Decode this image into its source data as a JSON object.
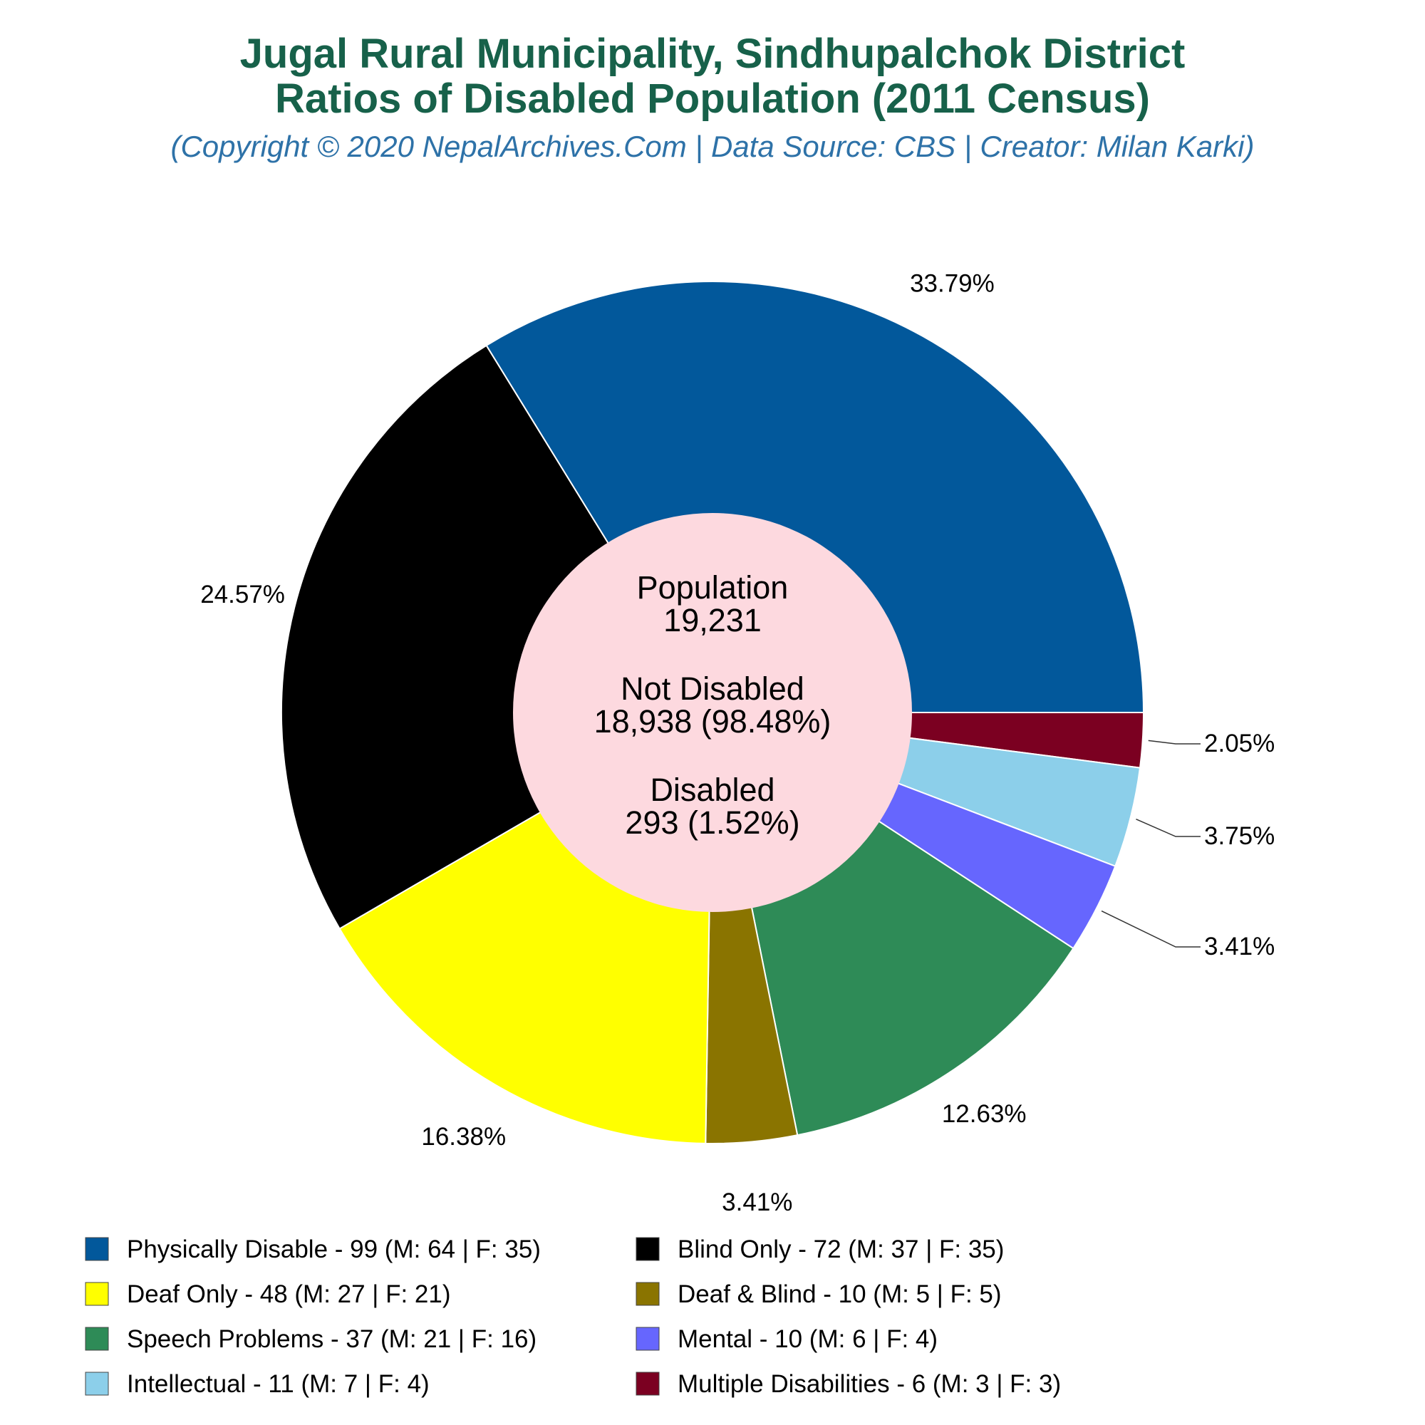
{
  "chart_data": {
    "type": "pie",
    "title": "Jugal Rural Municipality, Sindhupalchok District",
    "subtitle": "Ratios of Disabled Population (2011 Census)",
    "credit": "(Copyright © 2020 NepalArchives.Com | Data Source: CBS | Creator: Milan Karki)",
    "slices": [
      {
        "name": "Physically Disable",
        "value": 99,
        "male": 64,
        "female": 35,
        "percent_label": "33.79%",
        "color": "#02589b",
        "legend": "Physically Disable - 99 (M: 64 | F: 35)"
      },
      {
        "name": "Multiple Disabilities",
        "value": 6,
        "male": 3,
        "female": 3,
        "percent_label": "2.05%",
        "color": "#7b0021",
        "legend": "Multiple Disabilities - 6 (M: 3 | F: 3)"
      },
      {
        "name": "Intellectual",
        "value": 11,
        "male": 7,
        "female": 4,
        "percent_label": "3.75%",
        "color": "#8ccfea",
        "legend": "Intellectual - 11 (M: 7 | F: 4)"
      },
      {
        "name": "Mental",
        "value": 10,
        "male": 6,
        "female": 4,
        "percent_label": "3.41%",
        "color": "#6666fe",
        "legend": "Mental - 10 (M: 6 | F: 4)"
      },
      {
        "name": "Speech Problems",
        "value": 37,
        "male": 21,
        "female": 16,
        "percent_label": "12.63%",
        "color": "#2e8b57",
        "legend": "Speech Problems - 37 (M: 21 | F: 16)"
      },
      {
        "name": "Deaf & Blind",
        "value": 10,
        "male": 5,
        "female": 5,
        "percent_label": "3.41%",
        "color": "#8a7400",
        "legend": "Deaf & Blind - 10 (M: 5 | F: 5)"
      },
      {
        "name": "Deaf Only",
        "value": 48,
        "male": 27,
        "female": 21,
        "percent_label": "16.38%",
        "color": "#ffff00",
        "legend": "Deaf Only - 48 (M: 27 | F: 21)"
      },
      {
        "name": "Blind Only",
        "value": 72,
        "male": 37,
        "female": 35,
        "percent_label": "24.57%",
        "color": "#000000",
        "legend": "Blind Only - 72 (M: 37 | F: 35)"
      }
    ],
    "legend_order": [
      "Physically Disable",
      "Blind Only",
      "Deaf Only",
      "Deaf & Blind",
      "Speech Problems",
      "Mental",
      "Intellectual",
      "Multiple Disabilities"
    ],
    "center": {
      "fill": "#fdd9df",
      "population_label": "Population",
      "population_value": "19,231",
      "not_disabled_label": "Not Disabled",
      "not_disabled_value": "18,938 (98.48%)",
      "disabled_label": "Disabled",
      "disabled_value": "293 (1.52%)"
    }
  }
}
